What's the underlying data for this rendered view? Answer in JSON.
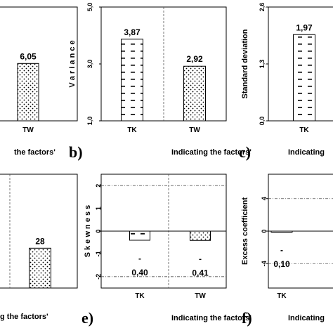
{
  "chart_data": [
    {
      "type": "bar",
      "letter": "",
      "categories": [
        "",
        "TW"
      ],
      "values": [
        null,
        6.05
      ],
      "data_labels": [
        "",
        "6,05"
      ],
      "patterns": [
        "",
        "dots"
      ],
      "ylabel": "",
      "ylim": [
        0,
        12
      ],
      "yticks": [],
      "caption": "the factors'",
      "gridlines": [],
      "divider": false
    },
    {
      "type": "bar",
      "letter": "b)",
      "categories": [
        "TK",
        "TW"
      ],
      "values": [
        3.87,
        2.92
      ],
      "data_labels": [
        "3,87",
        "2,92"
      ],
      "patterns": [
        "dash",
        "dots"
      ],
      "ylabel": "V a r i a n c e",
      "ylim": [
        1,
        5
      ],
      "yticks": [
        "1,0",
        "3,0",
        "5,0"
      ],
      "ytick_values": [
        1,
        3,
        5
      ],
      "caption": "Indicating the factors'",
      "gridlines": [],
      "divider": true
    },
    {
      "type": "bar",
      "letter": "c)",
      "categories": [
        "TK"
      ],
      "values": [
        1.97
      ],
      "data_labels": [
        "1,97"
      ],
      "patterns": [
        "dash"
      ],
      "ylabel": "Standard deviation",
      "ylim": [
        0,
        2.6
      ],
      "yticks": [
        "0,0",
        "1,3",
        "2,6"
      ],
      "ytick_values": [
        0,
        1.3,
        2.6
      ],
      "caption": "Indicating",
      "gridlines": [],
      "divider": false
    },
    {
      "type": "bar",
      "letter": "",
      "categories": [
        "",
        ""
      ],
      "values": [
        null,
        28
      ],
      "data_labels": [
        "",
        "28"
      ],
      "patterns": [
        "",
        "dots"
      ],
      "ylabel": "",
      "ylim": [
        0,
        80
      ],
      "yticks": [],
      "caption": "g the factors'",
      "gridlines": [],
      "divider": true
    },
    {
      "type": "bar",
      "letter": "e)",
      "categories": [
        "TK",
        "TW"
      ],
      "values": [
        -0.4,
        -0.41
      ],
      "data_labels": [
        "-\n0,40",
        "-\n0,41"
      ],
      "patterns": [
        "dash",
        "dots"
      ],
      "ylabel": "S k e w n e s s",
      "ylim": [
        -2.5,
        2.5
      ],
      "yticks": [
        "-2",
        "-1",
        "0",
        "1",
        "2"
      ],
      "ytick_values": [
        -2,
        -1,
        0,
        1,
        2
      ],
      "caption": "Indicating the factors'",
      "gridlines": [
        2,
        -2
      ],
      "divider": true
    },
    {
      "type": "bar",
      "letter": "f)",
      "categories": [
        "TK"
      ],
      "values": [
        -0.1
      ],
      "data_labels": [
        "-\n0,10"
      ],
      "patterns": [
        "dash"
      ],
      "ylabel": "Excess coefficient",
      "ylim": [
        -7,
        7
      ],
      "yticks": [
        "-4",
        "0",
        "4"
      ],
      "ytick_values": [
        -4,
        0,
        4
      ],
      "caption": "Indicating",
      "gridlines": [
        4,
        -4
      ],
      "divider": false
    }
  ]
}
